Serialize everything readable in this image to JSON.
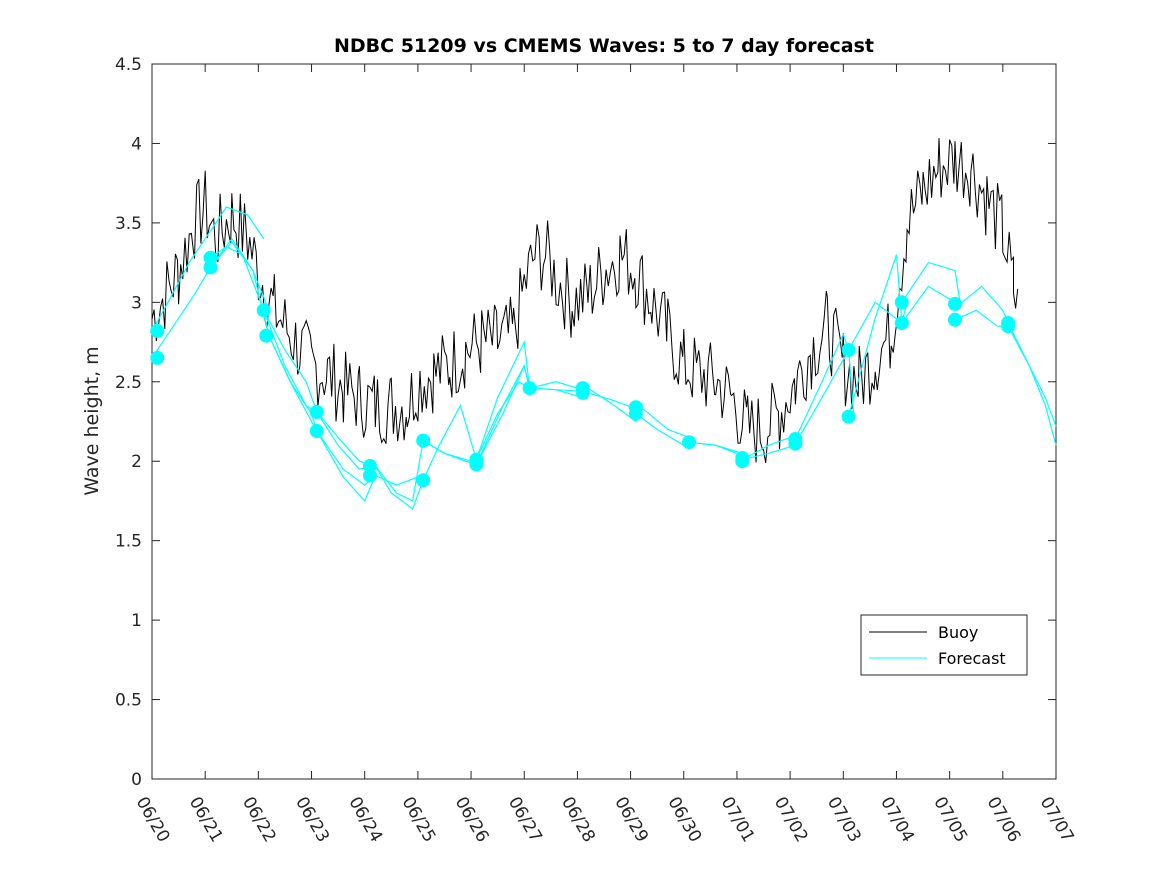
{
  "chart_data": {
    "type": "line",
    "title": "NDBC 51209 vs CMEMS Waves: 5 to 7 day forecast",
    "xlabel": "",
    "ylabel": "Wave height, m",
    "xlim": [
      0,
      17
    ],
    "ylim": [
      0,
      4.5
    ],
    "x_tick_labels": [
      "06/20",
      "06/21",
      "06/22",
      "06/23",
      "06/24",
      "06/25",
      "06/26",
      "06/27",
      "06/28",
      "06/29",
      "06/30",
      "07/01",
      "07/02",
      "07/03",
      "07/04",
      "07/05",
      "07/06",
      "07/07"
    ],
    "y_tick_labels": [
      "0",
      "0.5",
      "1",
      "1.5",
      "2",
      "2.5",
      "3",
      "3.5",
      "4",
      "4.5"
    ],
    "legend_position": "lower-right",
    "colors": {
      "buoy": "#000000",
      "forecast": "#00ffff",
      "axis": "#262626"
    },
    "legend": [
      {
        "name": "Buoy",
        "color": "#000000"
      },
      {
        "name": "Forecast",
        "color": "#00ffff"
      }
    ],
    "buoy_series": {
      "name": "Buoy",
      "x": [
        0.0,
        0.5,
        0.8,
        1.0,
        1.2,
        1.5,
        1.8,
        2.0,
        2.3,
        2.7,
        3.0,
        3.3,
        3.6,
        3.9,
        4.2,
        4.5,
        4.8,
        5.0,
        5.3,
        5.6,
        5.9,
        6.2,
        6.5,
        6.8,
        7.0,
        7.2,
        7.4,
        7.6,
        7.9,
        8.2,
        8.5,
        8.8,
        9.1,
        9.4,
        9.7,
        10.0,
        10.3,
        10.6,
        10.9,
        11.2,
        11.5,
        11.8,
        12.1,
        12.4,
        12.7,
        13.0,
        13.3,
        13.6,
        13.9,
        14.2,
        14.5,
        14.8,
        15.1,
        15.4,
        15.7,
        16.0,
        16.2,
        16.3
      ],
      "y": [
        2.9,
        3.2,
        3.5,
        3.6,
        3.4,
        3.55,
        3.4,
        3.2,
        2.95,
        2.75,
        2.6,
        2.55,
        2.45,
        2.4,
        2.35,
        2.35,
        2.35,
        2.5,
        2.55,
        2.6,
        2.7,
        2.75,
        2.75,
        2.8,
        3.1,
        3.3,
        3.3,
        3.15,
        3.0,
        3.05,
        3.2,
        3.3,
        3.2,
        3.0,
        2.8,
        2.6,
        2.55,
        2.5,
        2.4,
        2.2,
        2.2,
        2.3,
        2.5,
        2.7,
        2.85,
        2.6,
        2.5,
        2.65,
        2.8,
        3.5,
        3.7,
        3.85,
        3.9,
        3.85,
        3.65,
        3.45,
        3.1,
        2.9
      ]
    },
    "forecast_series": [
      {
        "x": [
          0.0,
          0.3,
          0.7,
          1.1,
          1.4,
          1.8,
          2.1
        ],
        "y": [
          2.82,
          3.0,
          3.25,
          3.45,
          3.6,
          3.55,
          3.4
        ]
      },
      {
        "x": [
          0.0,
          0.4,
          0.8,
          1.1,
          1.5,
          1.9,
          2.2
        ],
        "y": [
          2.65,
          2.85,
          3.05,
          3.22,
          3.4,
          3.2,
          2.95
        ]
      },
      {
        "x": [
          1.1,
          1.4,
          1.7,
          2.1,
          2.5,
          2.9,
          3.1
        ],
        "y": [
          3.28,
          3.35,
          3.3,
          2.95,
          2.7,
          2.5,
          2.31
        ]
      },
      {
        "x": [
          1.1,
          1.5,
          1.9,
          2.2,
          2.6,
          3.0,
          3.1
        ],
        "y": [
          3.22,
          3.38,
          3.2,
          2.79,
          2.5,
          2.3,
          2.19
        ]
      },
      {
        "x": [
          2.1,
          2.5,
          2.9,
          3.1,
          3.5,
          3.9,
          4.2
        ],
        "y": [
          2.95,
          2.6,
          2.35,
          2.31,
          2.15,
          2.0,
          1.97
        ]
      },
      {
        "x": [
          2.2,
          2.6,
          3.0,
          3.1,
          3.6,
          4.0,
          4.2
        ],
        "y": [
          2.79,
          2.5,
          2.25,
          2.19,
          1.95,
          1.85,
          1.91
        ]
      },
      {
        "x": [
          3.1,
          3.5,
          3.9,
          4.2,
          4.5,
          4.9,
          5.1
        ],
        "y": [
          2.31,
          2.1,
          1.95,
          1.97,
          1.8,
          1.7,
          1.88
        ]
      },
      {
        "x": [
          3.1,
          3.6,
          4.0,
          4.2,
          4.6,
          5.0,
          5.1
        ],
        "y": [
          2.19,
          1.9,
          1.75,
          1.91,
          1.85,
          1.9,
          1.88
        ]
      },
      {
        "x": [
          4.2,
          4.6,
          4.9,
          5.1,
          5.5,
          5.9,
          6.1
        ],
        "y": [
          1.97,
          1.8,
          1.75,
          2.13,
          2.05,
          2.0,
          1.98
        ]
      },
      {
        "x": [
          5.1,
          5.4,
          5.8,
          6.1,
          6.5,
          6.9,
          7.1
        ],
        "y": [
          1.88,
          2.1,
          2.35,
          2.01,
          2.3,
          2.5,
          2.46
        ]
      },
      {
        "x": [
          5.1,
          5.5,
          6.0,
          6.1,
          6.6,
          7.0,
          7.1
        ],
        "y": [
          2.13,
          2.05,
          2.0,
          1.98,
          2.35,
          2.6,
          2.46
        ]
      },
      {
        "x": [
          6.1,
          6.5,
          7.0,
          7.1,
          7.6,
          8.1,
          8.2
        ],
        "y": [
          2.01,
          2.4,
          2.75,
          2.46,
          2.45,
          2.44,
          2.43
        ]
      },
      {
        "x": [
          6.1,
          6.6,
          7.0,
          7.1,
          7.6,
          8.1,
          8.2
        ],
        "y": [
          1.98,
          2.3,
          2.6,
          2.46,
          2.5,
          2.45,
          2.46
        ]
      },
      {
        "x": [
          7.1,
          7.6,
          8.1,
          8.2,
          8.7,
          9.1,
          9.2
        ],
        "y": [
          2.46,
          2.45,
          2.4,
          2.43,
          2.38,
          2.33,
          2.3
        ]
      },
      {
        "x": [
          8.2,
          8.7,
          9.1,
          9.2,
          9.7,
          10.1,
          10.2
        ],
        "y": [
          2.46,
          2.35,
          2.25,
          2.34,
          2.2,
          2.15,
          2.12
        ]
      },
      {
        "x": [
          9.1,
          9.5,
          10.0,
          10.1,
          10.6,
          11.1,
          11.2
        ],
        "y": [
          2.3,
          2.2,
          2.1,
          2.12,
          2.1,
          2.05,
          2.01
        ]
      },
      {
        "x": [
          10.1,
          10.6,
          11.0,
          11.1,
          11.6,
          12.1,
          12.2
        ],
        "y": [
          2.12,
          2.1,
          2.05,
          2.01,
          2.05,
          2.1,
          2.14
        ]
      },
      {
        "x": [
          11.1,
          11.6,
          12.0,
          12.1,
          12.6,
          13.1,
          13.2
        ],
        "y": [
          2.01,
          2.1,
          2.15,
          2.11,
          2.4,
          2.7,
          2.28
        ]
      },
      {
        "x": [
          12.1,
          12.6,
          13.0,
          13.1,
          13.6,
          14.1,
          14.2
        ],
        "y": [
          2.14,
          2.5,
          2.8,
          2.7,
          3.0,
          2.87,
          3.0
        ]
      },
      {
        "x": [
          13.1,
          13.6,
          14.0,
          14.1,
          14.6,
          15.1,
          15.2
        ],
        "y": [
          2.28,
          2.9,
          3.3,
          2.87,
          3.1,
          3.0,
          2.99
        ]
      },
      {
        "x": [
          14.1,
          14.6,
          15.1,
          15.2,
          15.6,
          16.0,
          16.1
        ],
        "y": [
          3.0,
          3.25,
          3.2,
          2.99,
          3.1,
          2.95,
          2.87
        ]
      },
      {
        "x": [
          15.1,
          15.5,
          15.9,
          16.1,
          16.5,
          16.8,
          17.0
        ],
        "y": [
          2.89,
          2.95,
          2.85,
          2.85,
          2.6,
          2.35,
          2.1
        ]
      },
      {
        "x": [
          16.1,
          16.5,
          16.8,
          17.0
        ],
        "y": [
          2.87,
          2.6,
          2.4,
          2.22
        ]
      }
    ],
    "forecast_points": {
      "x": [
        0.1,
        0.1,
        1.1,
        1.1,
        2.1,
        2.15,
        3.1,
        3.1,
        4.1,
        4.1,
        5.1,
        5.1,
        6.1,
        6.1,
        7.1,
        8.1,
        8.1,
        9.1,
        9.1,
        10.1,
        11.1,
        11.1,
        12.1,
        12.1,
        13.1,
        13.1,
        14.1,
        14.1,
        15.1,
        15.1,
        16.1,
        16.1
      ],
      "y": [
        2.82,
        2.65,
        3.28,
        3.22,
        2.95,
        2.79,
        2.31,
        2.19,
        1.97,
        1.91,
        2.13,
        1.88,
        2.01,
        1.98,
        2.46,
        2.46,
        2.43,
        2.34,
        2.3,
        2.12,
        2.02,
        2.0,
        2.14,
        2.11,
        2.7,
        2.28,
        3.0,
        2.87,
        2.99,
        2.89,
        2.87,
        2.85
      ]
    }
  }
}
